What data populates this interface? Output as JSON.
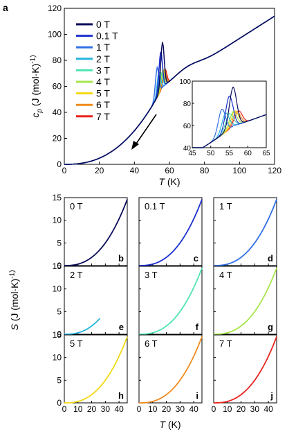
{
  "panel_letter_main": "a",
  "chart_data": [
    {
      "type": "line",
      "id": "a",
      "xlabel": "T (K)",
      "ylabel": "c_p (J (mol·K)^-1)",
      "xlim": [
        0,
        120
      ],
      "ylim": [
        0,
        120
      ],
      "xticks": [
        0,
        20,
        40,
        60,
        80,
        100,
        120
      ],
      "yticks": [
        0,
        20,
        40,
        60,
        80,
        100,
        120
      ],
      "legend_placement": "top-left",
      "series": [
        {
          "name": "0 T",
          "color": "#0a0a5c",
          "peak": 95,
          "tc": 56.0
        },
        {
          "name": "0.1 T",
          "color": "#1a2ed0",
          "peak": 90,
          "tc": 55.0
        },
        {
          "name": "1 T",
          "color": "#2f6fe6",
          "peak": 83,
          "tc": 53.0
        },
        {
          "name": "2 T",
          "color": "#25b4de",
          "peak": 77,
          "tc": 54.0
        },
        {
          "name": "3 T",
          "color": "#4fe3b2",
          "peak": 74,
          "tc": 55.0
        },
        {
          "name": "4 T",
          "color": "#a5e64a",
          "peak": 73,
          "tc": 56.0
        },
        {
          "name": "5 T",
          "color": "#f2da12",
          "peak": 73,
          "tc": 56.5
        },
        {
          "name": "6 T",
          "color": "#f08a1a",
          "peak": 72,
          "tc": 57.0
        },
        {
          "name": "7 T",
          "color": "#e8231d",
          "peak": 72,
          "tc": 57.5
        }
      ],
      "inset": {
        "xlim": [
          45,
          65
        ],
        "ylim": [
          40,
          100
        ],
        "xticks": [
          45,
          50,
          55,
          60,
          65
        ],
        "yticks": [
          40,
          60,
          80,
          100
        ]
      },
      "annotation": "arrow pointing toward lower temperature"
    },
    {
      "type": "line",
      "id": "entropy_grid",
      "ylabel": "S (J (mol·K)^-1)",
      "xlabel": "T (K)",
      "xlim": [
        0,
        46
      ],
      "ylim": [
        0,
        15
      ],
      "xticks": [
        0,
        10,
        20,
        30,
        40
      ],
      "yticks": [
        0,
        5,
        10,
        15
      ],
      "panels": [
        {
          "letter": "b",
          "field": "0 T",
          "color": "#0a0a5c",
          "t_end": 46
        },
        {
          "letter": "c",
          "field": "0.1 T",
          "color": "#1a2ed0",
          "t_end": 46
        },
        {
          "letter": "d",
          "field": "1 T",
          "color": "#2f6fe6",
          "t_end": 46
        },
        {
          "letter": "e",
          "field": "2 T",
          "color": "#25b4de",
          "t_end": 26
        },
        {
          "letter": "f",
          "field": "3 T",
          "color": "#4fe3b2",
          "t_end": 46
        },
        {
          "letter": "g",
          "field": "4 T",
          "color": "#a5e64a",
          "t_end": 46
        },
        {
          "letter": "h",
          "field": "5 T",
          "color": "#f2da12",
          "t_end": 46
        },
        {
          "letter": "i",
          "field": "6 T",
          "color": "#f08a1a",
          "t_end": 46
        },
        {
          "letter": "j",
          "field": "7 T",
          "color": "#e8231d",
          "t_end": 46
        }
      ]
    }
  ]
}
